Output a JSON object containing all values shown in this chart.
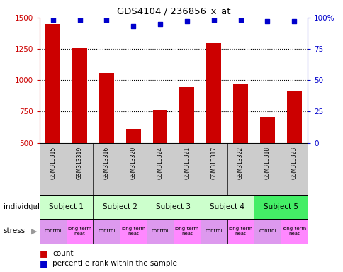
{
  "title": "GDS4104 / 236856_x_at",
  "samples": [
    "GSM313315",
    "GSM313319",
    "GSM313316",
    "GSM313320",
    "GSM313324",
    "GSM313321",
    "GSM313317",
    "GSM313322",
    "GSM313318",
    "GSM313323"
  ],
  "counts": [
    1450,
    1255,
    1060,
    610,
    765,
    945,
    1295,
    975,
    710,
    910
  ],
  "percentiles": [
    98,
    98,
    98,
    93,
    95,
    97,
    98,
    98,
    97,
    97
  ],
  "ylim_left": [
    500,
    1500
  ],
  "ylim_right": [
    0,
    100
  ],
  "yticks_left": [
    500,
    750,
    1000,
    1250,
    1500
  ],
  "yticks_right": [
    0,
    25,
    50,
    75,
    100
  ],
  "bar_color": "#cc0000",
  "dot_color": "#0000cc",
  "sample_bg": "#cccccc",
  "subject_group_colors": [
    "#ccffcc",
    "#ccffcc",
    "#ccffcc",
    "#ccffcc",
    "#44ee66"
  ],
  "subject_groups": [
    [
      0,
      1,
      "Subject 1"
    ],
    [
      2,
      3,
      "Subject 2"
    ],
    [
      4,
      5,
      "Subject 3"
    ],
    [
      6,
      7,
      "Subject 4"
    ],
    [
      8,
      9,
      "Subject 5"
    ]
  ],
  "stress": [
    "control",
    "long-term\nheat",
    "control",
    "long-term\nheat",
    "control",
    "long-term\nheat",
    "control",
    "long-term\nheat",
    "control",
    "long-term\nheat"
  ],
  "stress_color_ctrl": "#dd99ee",
  "stress_color_heat": "#ff88ff",
  "grid_lines": [
    750,
    1000,
    1250
  ],
  "individual_label": "individual",
  "stress_label": "stress",
  "legend_count": "count",
  "legend_pct": "percentile rank within the sample"
}
